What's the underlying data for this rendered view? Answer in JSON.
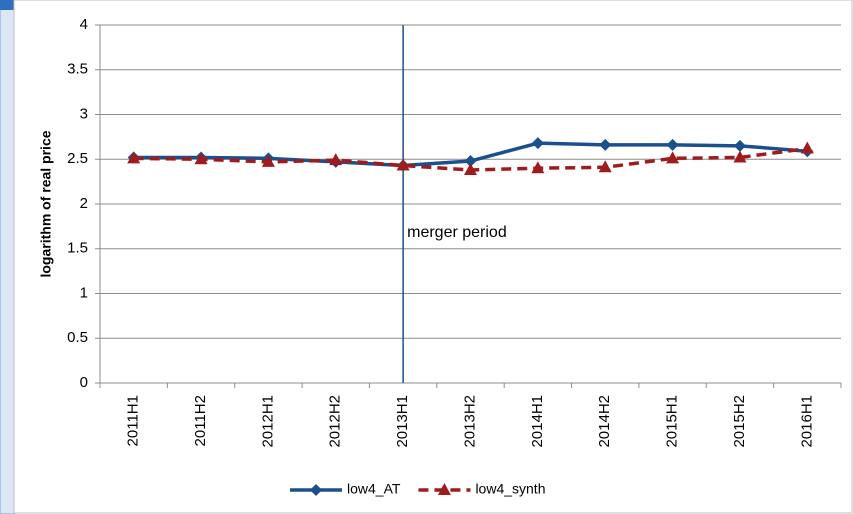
{
  "chart_data": {
    "type": "line",
    "y_label": "logarithm of real price",
    "categories": [
      "2011H1",
      "2011H2",
      "2012H1",
      "2012H2",
      "2013H1",
      "2013H2",
      "2014H1",
      "2014H2",
      "2015H1",
      "2015H2",
      "2016H1"
    ],
    "series": [
      {
        "name": "low4_AT",
        "color": "#1b4f8e",
        "marker": "diamond",
        "dash": false,
        "values": [
          2.52,
          2.52,
          2.51,
          2.47,
          2.43,
          2.48,
          2.68,
          2.66,
          2.66,
          2.65,
          2.59
        ]
      },
      {
        "name": "low4_synth",
        "color": "#a01c1c",
        "marker": "triangle",
        "dash": true,
        "values": [
          2.51,
          2.5,
          2.47,
          2.49,
          2.43,
          2.38,
          2.4,
          2.41,
          2.51,
          2.52,
          2.62
        ]
      }
    ],
    "annotation": {
      "text": "merger period",
      "category": "2013H1",
      "color": "#1b4f8e"
    },
    "ylim": [
      0,
      4
    ],
    "yticks": [
      0,
      0.5,
      1,
      1.5,
      2,
      2.5,
      3,
      3.5,
      4
    ],
    "grid": true,
    "legend": "bottom"
  }
}
